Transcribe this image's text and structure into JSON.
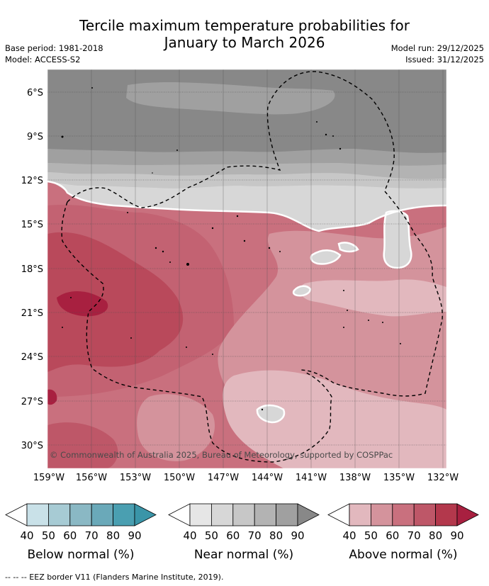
{
  "title_line1": "Tercile maximum temperature probabilities for",
  "title_line2": "January to March 2026",
  "base_period": "Base period: 1981-2018",
  "model": "Model: ACCESS-S2",
  "model_run": "Model run: 29/12/2025",
  "issued": "Issued: 31/12/2025",
  "copyright": "© Commonwealth of Australia 2025, Bureau of Meteorology, supported by COSPPac",
  "footnote": "--  --  -- EEZ border V11 (Flanders Marine Institute, 2019).",
  "lat_labels": [
    "6°S",
    "9°S",
    "12°S",
    "15°S",
    "18°S",
    "21°S",
    "24°S",
    "27°S",
    "30°S"
  ],
  "lon_labels": [
    "159°W",
    "156°W",
    "153°W",
    "150°W",
    "147°W",
    "144°W",
    "141°W",
    "138°W",
    "135°W",
    "132°W"
  ],
  "legends": [
    {
      "title": "Below normal (%)",
      "ticks": [
        "40",
        "50",
        "60",
        "70",
        "80",
        "90"
      ],
      "colors": [
        "#ffffff",
        "#c9e1e8",
        "#a7cbd4",
        "#8ab8c4",
        "#6aa9b9",
        "#4a9fb1",
        "#3a95a8"
      ]
    },
    {
      "title": "Near normal (%)",
      "ticks": [
        "40",
        "50",
        "60",
        "70",
        "80",
        "90"
      ],
      "colors": [
        "#ffffff",
        "#e6e6e6",
        "#d7d7d7",
        "#c7c7c7",
        "#b3b3b3",
        "#a0a0a0",
        "#888888"
      ]
    },
    {
      "title": "Above normal (%)",
      "ticks": [
        "40",
        "50",
        "60",
        "70",
        "80",
        "90"
      ],
      "colors": [
        "#ffffff",
        "#e2b8be",
        "#d4939c",
        "#c9707e",
        "#be5768",
        "#b3384c",
        "#a82040"
      ]
    }
  ],
  "colors": {
    "near_90": "#888888",
    "near_80": "#a0a0a0",
    "near_70": "#b3b3b3",
    "near_60": "#c7c7c7",
    "near_50": "#d7d7d7",
    "above_40": "#e2b8be",
    "above_50": "#d4939c",
    "above_60": "#c9707e",
    "above_70": "#be5768",
    "above_80": "#b3384c",
    "above_90": "#a82040"
  }
}
